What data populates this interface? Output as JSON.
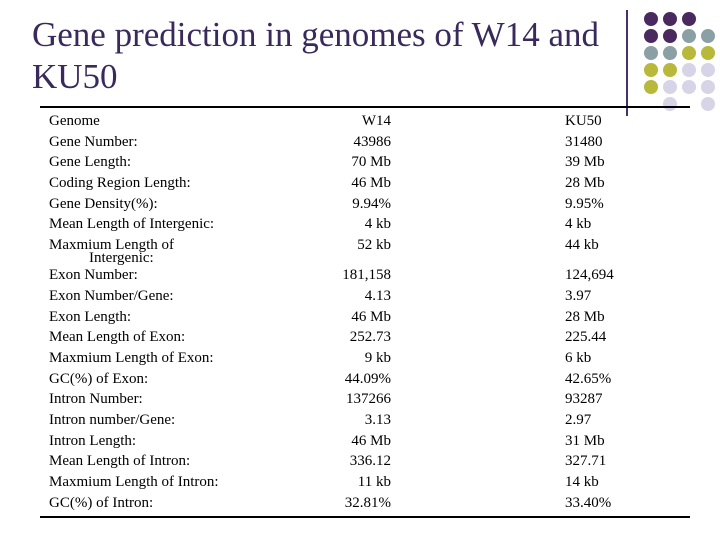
{
  "title": "Gene prediction in genomes of W14 and KU50",
  "colors": {
    "title": "#3a2a5c",
    "purple": "#4a2a5e",
    "gray": "#8aa0a5",
    "olive": "#b8b83a",
    "lavender": "#d6d4e6"
  },
  "rows": [
    {
      "label": "Genome",
      "w14": "W14",
      "ku50": "KU50"
    },
    {
      "label": "Gene Number:",
      "w14": "43986",
      "ku50": "31480"
    },
    {
      "label": "Gene Length:",
      "w14": "70 Mb",
      "ku50": "39 Mb"
    },
    {
      "label": "Coding Region Length:",
      "w14": "46 Mb",
      "ku50": "28 Mb"
    },
    {
      "label": "Gene Density(%):",
      "w14": "9.94%",
      "ku50": "9.95%"
    },
    {
      "label": "Mean Length of Intergenic:",
      "w14": "4 kb",
      "ku50": "4 kb"
    },
    {
      "label": "Maxmium Length of",
      "label2": "Intergenic:",
      "w14": "52 kb",
      "ku50": "44 kb"
    },
    {
      "label": "Exon Number:",
      "w14": "181,158",
      "ku50": "124,694"
    },
    {
      "label": "Exon Number/Gene:",
      "w14": "4.13",
      "ku50": "3.97"
    },
    {
      "label": "Exon Length:",
      "w14": "46 Mb",
      "ku50": "28 Mb"
    },
    {
      "label": "Mean Length of Exon:",
      "w14": "252.73",
      "ku50": "225.44"
    },
    {
      "label": "Maxmium Length of Exon:",
      "w14": "9 kb",
      "ku50": "6 kb"
    },
    {
      "label": "GC(%) of Exon:",
      "w14": "44.09%",
      "ku50": "42.65%"
    },
    {
      "label": "Intron Number:",
      "w14": "137266",
      "ku50": "93287"
    },
    {
      "label": "Intron number/Gene:",
      "w14": "3.13",
      "ku50": "2.97"
    },
    {
      "label": "Intron Length:",
      "w14": "46 Mb",
      "ku50": "31 Mb"
    },
    {
      "label": "Mean Length of Intron:",
      "w14": "336.12",
      "ku50": "327.71"
    },
    {
      "label": "Maxmium Length of Intron:",
      "w14": "11 kb",
      "ku50": "14 kb"
    },
    {
      "label": "GC(%) of Intron:",
      "w14": "32.81%",
      "ku50": "33.40%"
    }
  ]
}
